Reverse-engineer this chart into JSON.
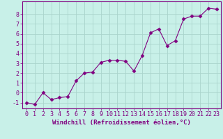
{
  "x": [
    0,
    1,
    2,
    3,
    4,
    5,
    6,
    7,
    8,
    9,
    10,
    11,
    12,
    13,
    14,
    15,
    16,
    17,
    18,
    19,
    20,
    21,
    22,
    23
  ],
  "y": [
    -1.0,
    -1.2,
    0.0,
    -0.7,
    -0.5,
    -0.4,
    1.2,
    2.0,
    2.1,
    3.1,
    3.3,
    3.3,
    3.2,
    2.2,
    3.8,
    6.1,
    6.5,
    4.8,
    5.3,
    7.5,
    7.8,
    7.8,
    8.6,
    8.5
  ],
  "line_color": "#800080",
  "marker": "D",
  "marker_size": 2.5,
  "bg_color": "#c8f0e8",
  "grid_color": "#aad4cc",
  "xlabel": "Windchill (Refroidissement éolien,°C)",
  "xlabel_color": "#800080",
  "tick_color": "#800080",
  "ylabel_ticks": [
    -1,
    0,
    1,
    2,
    3,
    4,
    5,
    6,
    7,
    8
  ],
  "xlim": [
    -0.5,
    23.5
  ],
  "ylim": [
    -1.6,
    9.3
  ],
  "xlabel_fontsize": 6.5,
  "tick_fontsize": 6.0,
  "spine_color": "#800080"
}
